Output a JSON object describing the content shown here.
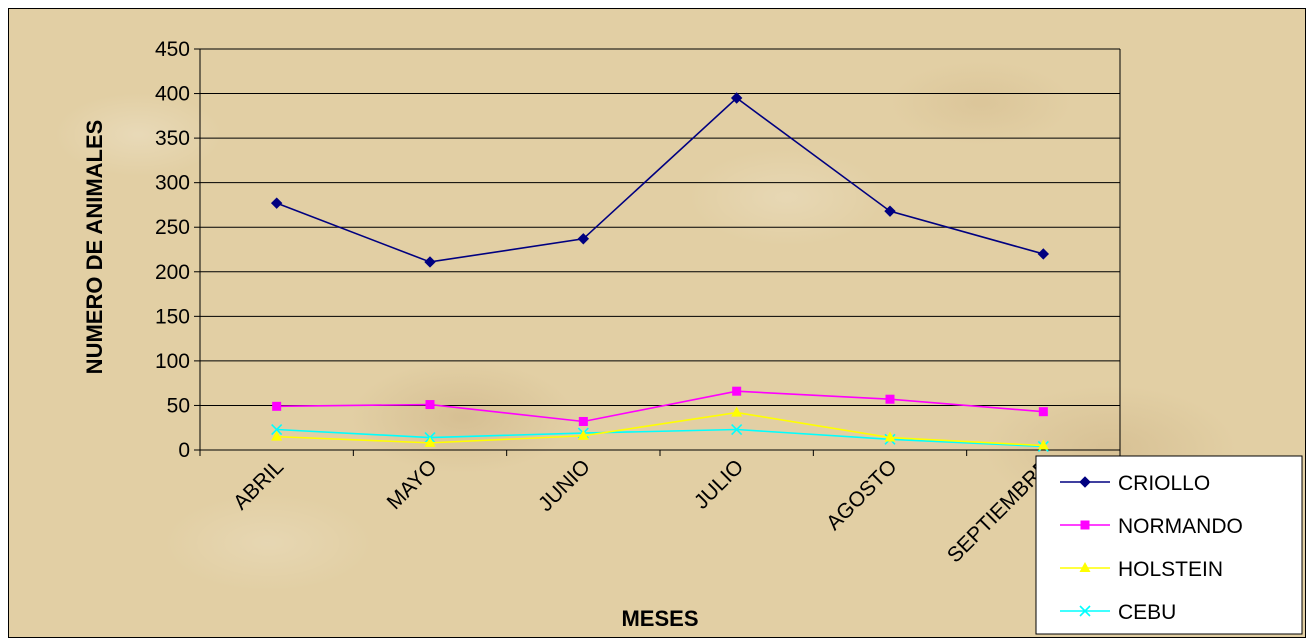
{
  "chart_data": {
    "type": "line",
    "categories": [
      "ABRIL",
      "MAYO",
      "JUNIO",
      "JULIO",
      "AGOSTO",
      "SEPTIEMBRE"
    ],
    "series": [
      {
        "name": "CRIOLLO",
        "values": [
          277,
          211,
          237,
          395,
          268,
          220
        ],
        "color": "#000080",
        "marker": "diamond"
      },
      {
        "name": "NORMANDO",
        "values": [
          49,
          51,
          32,
          66,
          57,
          43
        ],
        "color": "#ff00ff",
        "marker": "square"
      },
      {
        "name": "HOLSTEIN",
        "values": [
          15,
          8,
          16,
          42,
          14,
          5
        ],
        "color": "#ffff00",
        "marker": "triangle"
      },
      {
        "name": "CEBU",
        "values": [
          23,
          14,
          19,
          23,
          12,
          4
        ],
        "color": "#00ffff",
        "marker": "x"
      }
    ],
    "xlabel": "MESES",
    "ylabel": "NUMERO DE ANIMALES",
    "ylim": [
      0,
      450
    ],
    "yticks": [
      0,
      50,
      100,
      150,
      200,
      250,
      300,
      350,
      400,
      450
    ],
    "grid": "horizontal",
    "legend": "bottom-right"
  }
}
